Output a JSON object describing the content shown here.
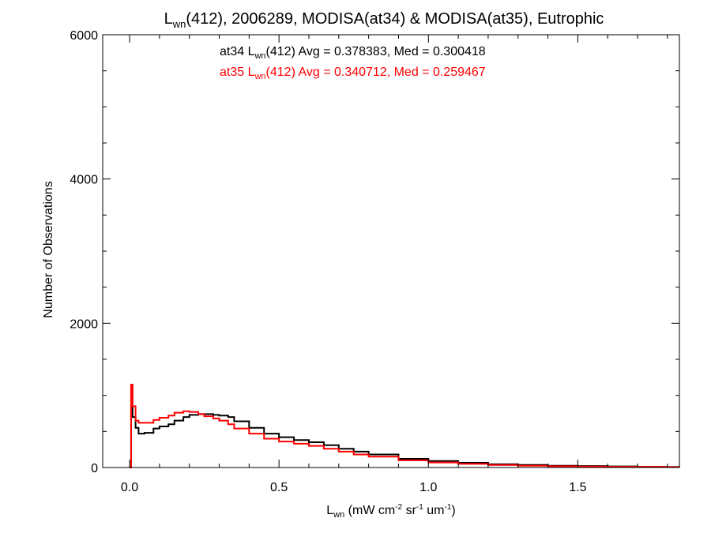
{
  "chart_data": {
    "type": "line",
    "title": {
      "base": "L",
      "sub": "wn",
      "rest": "(412), 2006289, MODISA(at34) & MODISA(at35), Eutrophic"
    },
    "xlabel": {
      "base": "L",
      "sub": "wn",
      "p1": " (mW cm",
      "sup1": "-2",
      "p2": " sr",
      "sup2": "-1",
      "p3": " um",
      "sup3": "-1",
      "p4": ")"
    },
    "ylabel": "Number of Observations",
    "xlim": [
      -0.09,
      1.84
    ],
    "ylim": [
      0,
      6000
    ],
    "x_ticks": [
      0.0,
      0.5,
      1.0,
      1.5
    ],
    "x_tick_labels": [
      "0.0",
      "0.5",
      "1.0",
      "1.5"
    ],
    "y_ticks": [
      0,
      2000,
      4000,
      6000
    ],
    "y_tick_labels": [
      "0",
      "2000",
      "4000",
      "6000"
    ],
    "annotations": [
      {
        "series": "at34",
        "prefix": "at34 L",
        "sub": "wn",
        "suffix": "(412) Avg = 0.378383, Med = 0.300418",
        "color": "#000000"
      },
      {
        "series": "at35",
        "prefix": "at35 L",
        "sub": "wn",
        "suffix": "(412) Avg = 0.340712, Med = 0.259467",
        "color": "#ff0000"
      }
    ],
    "series": [
      {
        "color": "#000000",
        "x": [
          0.0,
          0.005,
          0.01,
          0.02,
          0.03,
          0.05,
          0.08,
          0.1,
          0.13,
          0.15,
          0.18,
          0.2,
          0.23,
          0.25,
          0.28,
          0.3,
          0.33,
          0.35,
          0.4,
          0.45,
          0.5,
          0.55,
          0.6,
          0.65,
          0.7,
          0.75,
          0.8,
          0.9,
          1.0,
          1.1,
          1.2,
          1.3,
          1.4,
          1.5,
          1.6,
          1.7,
          1.8,
          1.84
        ],
        "y": [
          0,
          850,
          700,
          550,
          470,
          480,
          540,
          570,
          600,
          650,
          700,
          730,
          740,
          740,
          730,
          720,
          700,
          640,
          550,
          470,
          420,
          380,
          350,
          310,
          260,
          220,
          180,
          120,
          90,
          65,
          45,
          35,
          25,
          20,
          15,
          10,
          8,
          5
        ]
      },
      {
        "color": "#ff0000",
        "x": [
          0.0,
          0.005,
          0.01,
          0.02,
          0.03,
          0.05,
          0.08,
          0.1,
          0.13,
          0.15,
          0.18,
          0.2,
          0.23,
          0.25,
          0.28,
          0.3,
          0.33,
          0.35,
          0.4,
          0.45,
          0.5,
          0.55,
          0.6,
          0.65,
          0.7,
          0.75,
          0.8,
          0.9,
          1.0,
          1.1,
          1.2,
          1.3,
          1.4,
          1.5,
          1.6,
          1.7,
          1.8,
          1.84
        ],
        "y": [
          0,
          1150,
          850,
          650,
          620,
          620,
          660,
          690,
          720,
          760,
          780,
          770,
          740,
          710,
          680,
          650,
          600,
          540,
          470,
          400,
          360,
          330,
          300,
          260,
          220,
          180,
          150,
          100,
          70,
          50,
          35,
          25,
          18,
          14,
          10,
          8,
          6,
          4
        ]
      }
    ],
    "grid": false
  }
}
